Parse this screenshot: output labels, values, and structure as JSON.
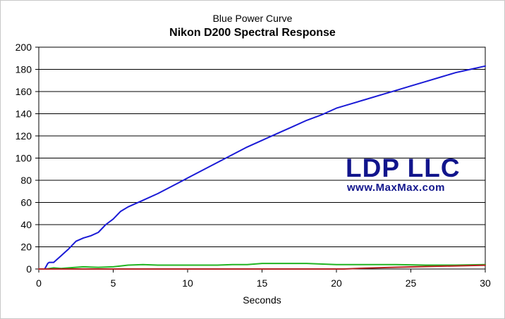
{
  "watermark": {
    "name": "LDP LLC",
    "url": "www.MaxMax.com"
  },
  "chart_data": {
    "type": "line",
    "title": "Blue Power Curve",
    "subtitle": "Nikon D200 Spectral Response",
    "xlabel": "Seconds",
    "ylabel": "",
    "xlim": [
      0,
      30
    ],
    "ylim": [
      0,
      200
    ],
    "x_ticks": [
      0,
      5,
      10,
      15,
      20,
      25,
      30
    ],
    "y_ticks": [
      0,
      20,
      40,
      60,
      80,
      100,
      120,
      140,
      160,
      180,
      200
    ],
    "grid": "horizontal",
    "legend": "none",
    "series": [
      {
        "color": "#1a1ad6",
        "x": [
          0.4,
          0.6,
          0.7,
          1.0,
          1.5,
          2.0,
          2.5,
          3.0,
          3.5,
          4.0,
          4.5,
          5.0,
          5.5,
          6.0,
          7.0,
          8.0,
          9.0,
          10.0,
          11.0,
          12.0,
          13.0,
          14.0,
          15.0,
          16.0,
          17.0,
          18.0,
          19.0,
          20.0,
          21.0,
          22.0,
          23.0,
          24.0,
          25.0,
          26.0,
          27.0,
          28.0,
          29.0,
          30.0
        ],
        "y": [
          0,
          5,
          6,
          6,
          12,
          18,
          25,
          28,
          30,
          33,
          40,
          45,
          52,
          56,
          62,
          68,
          75,
          82,
          89,
          96,
          103,
          110,
          116,
          122,
          128,
          134,
          139,
          145,
          149,
          153,
          157,
          161,
          165,
          169,
          173,
          177,
          180,
          183
        ]
      },
      {
        "color": "#22b422",
        "x": [
          0.5,
          1.0,
          1.5,
          2.0,
          3.0,
          4.0,
          5.0,
          6.0,
          7.0,
          8.0,
          10.0,
          12.0,
          13.0,
          14.0,
          15.0,
          16.0,
          18.0,
          20.0,
          22.0,
          24.0,
          26.0,
          28.0,
          30.0
        ],
        "y": [
          0,
          1,
          0.5,
          1,
          2,
          1.5,
          2,
          3.5,
          4,
          3.5,
          3.5,
          3.5,
          4,
          4,
          5,
          5,
          5,
          4,
          4,
          4,
          3.5,
          3.5,
          4
        ]
      },
      {
        "color": "#b42222",
        "x": [
          0,
          20.5,
          22.0,
          24.0,
          26.0,
          28.0,
          30.0
        ],
        "y": [
          0,
          0,
          0.8,
          1.6,
          2.2,
          2.8,
          3.4
        ]
      }
    ]
  }
}
